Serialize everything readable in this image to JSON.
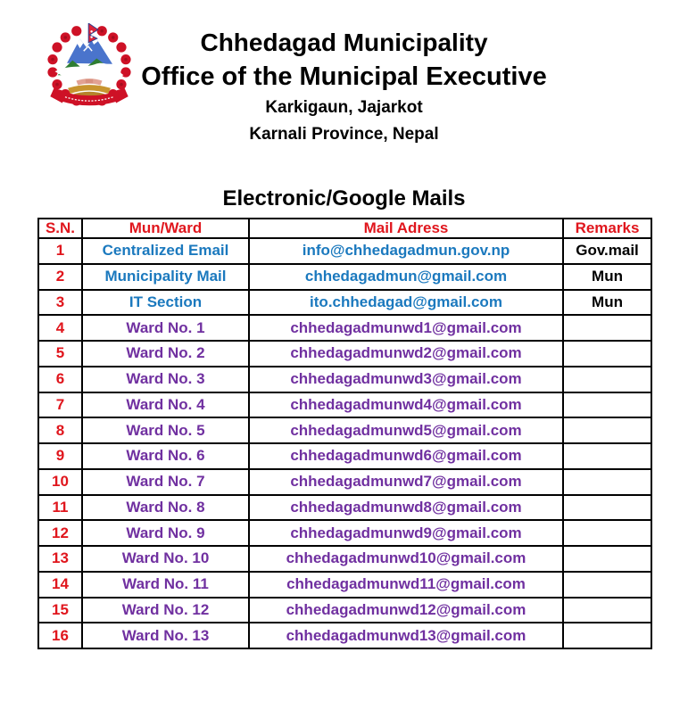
{
  "header": {
    "logo_icon": "nepal-government-emblem",
    "title_line1": "Chhedagad Municipality",
    "title_line2": "Office of the Municipal Executive",
    "address_line1": "Karkigaun, Jajarkot",
    "address_line2": "Karnali Province, Nepal"
  },
  "section_title": "Electronic/Google Mails",
  "table": {
    "columns": [
      "S.N.",
      "Mun/Ward",
      "Mail Adress",
      "Remarks"
    ],
    "rows": [
      {
        "sn": "1",
        "name": "Centralized Email",
        "email": "info@chhedagadmun.gov.np",
        "remarks": "Gov.mail",
        "style": "official"
      },
      {
        "sn": "2",
        "name": "Municipality Mail",
        "email": "chhedagadmun@gmail.com",
        "remarks": "Mun",
        "style": "official"
      },
      {
        "sn": "3",
        "name": "IT Section",
        "email": "ito.chhedagad@gmail.com",
        "remarks": "Mun",
        "style": "official"
      },
      {
        "sn": "4",
        "name": "Ward No. 1",
        "email": "chhedagadmunwd1@gmail.com",
        "remarks": "",
        "style": "ward"
      },
      {
        "sn": "5",
        "name": "Ward No. 2",
        "email": "chhedagadmunwd2@gmail.com",
        "remarks": "",
        "style": "ward"
      },
      {
        "sn": "6",
        "name": "Ward No. 3",
        "email": "chhedagadmunwd3@gmail.com",
        "remarks": "",
        "style": "ward"
      },
      {
        "sn": "7",
        "name": "Ward No. 4",
        "email": "chhedagadmunwd4@gmail.com",
        "remarks": "",
        "style": "ward"
      },
      {
        "sn": "8",
        "name": "Ward No. 5",
        "email": "chhedagadmunwd5@gmail.com",
        "remarks": "",
        "style": "ward"
      },
      {
        "sn": "9",
        "name": "Ward No. 6",
        "email": "chhedagadmunwd6@gmail.com",
        "remarks": "",
        "style": "ward"
      },
      {
        "sn": "10",
        "name": "Ward No. 7",
        "email": "chhedagadmunwd7@gmail.com",
        "remarks": "",
        "style": "ward"
      },
      {
        "sn": "11",
        "name": "Ward No. 8",
        "email": "chhedagadmunwd8@gmail.com",
        "remarks": "",
        "style": "ward"
      },
      {
        "sn": "12",
        "name": "Ward No. 9",
        "email": "chhedagadmunwd9@gmail.com",
        "remarks": "",
        "style": "ward"
      },
      {
        "sn": "13",
        "name": "Ward No. 10",
        "email": "chhedagadmunwd10@gmail.com",
        "remarks": "",
        "style": "ward"
      },
      {
        "sn": "14",
        "name": "Ward No. 11",
        "email": "chhedagadmunwd11@gmail.com",
        "remarks": "",
        "style": "ward"
      },
      {
        "sn": "15",
        "name": "Ward No. 12",
        "email": "chhedagadmunwd12@gmail.com",
        "remarks": "",
        "style": "ward"
      },
      {
        "sn": "16",
        "name": "Ward No. 13",
        "email": "chhedagadmunwd13@gmail.com",
        "remarks": "",
        "style": "ward"
      }
    ]
  },
  "colors": {
    "header_red": "#E0161D",
    "official_blue": "#1B79BE",
    "ward_purple": "#7030A0",
    "text_black": "#000000",
    "emblem_red": "#CE1126",
    "emblem_blue": "#4A74CC",
    "emblem_green": "#2E7D32",
    "emblem_gold": "#C8952F"
  }
}
